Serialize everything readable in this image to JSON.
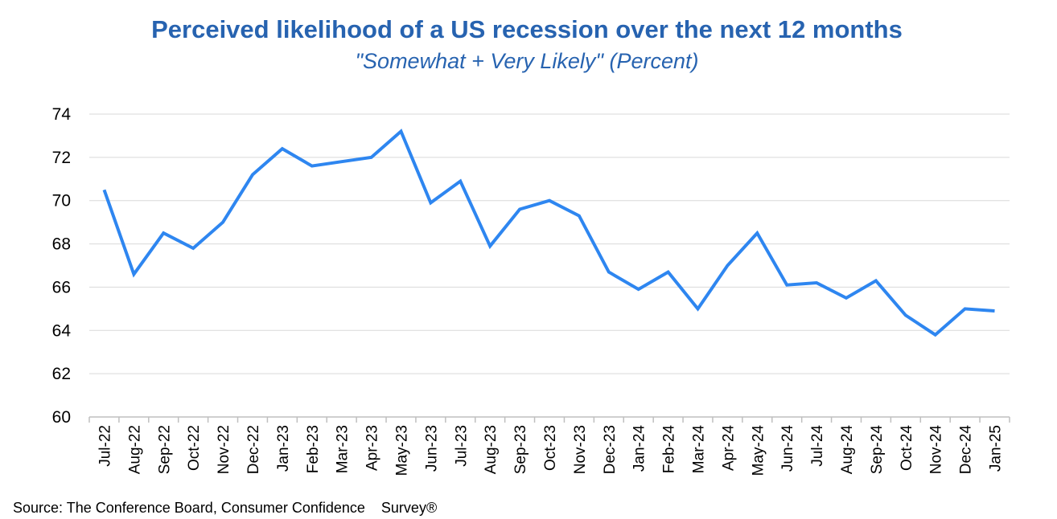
{
  "chart_data": {
    "type": "line",
    "title": "Perceived likelihood of a US recession over the next 12 months",
    "subtitle": "\"Somewhat + Very Likely\" (Percent)",
    "source": "Source: The Conference Board, Consumer Confidence    Survey®",
    "categories": [
      "Jul-22",
      "Aug-22",
      "Sep-22",
      "Oct-22",
      "Nov-22",
      "Dec-22",
      "Jan-23",
      "Feb-23",
      "Mar-23",
      "Apr-23",
      "May-23",
      "Jun-23",
      "Jul-23",
      "Aug-23",
      "Sep-23",
      "Oct-23",
      "Nov-23",
      "Dec-23",
      "Jan-24",
      "Feb-24",
      "Mar-24",
      "Apr-24",
      "May-24",
      "Jun-24",
      "Jul-24",
      "Aug-24",
      "Sep-24",
      "Oct-24",
      "Nov-24",
      "Dec-24",
      "Jan-25"
    ],
    "series": [
      {
        "values": [
          70.5,
          66.6,
          68.5,
          67.8,
          69.0,
          71.2,
          72.4,
          71.6,
          71.8,
          72.0,
          73.2,
          69.9,
          70.9,
          67.9,
          69.6,
          70.0,
          69.3,
          66.7,
          65.9,
          66.7,
          65.0,
          67.0,
          68.5,
          66.1,
          66.2,
          65.5,
          66.3,
          64.7,
          63.8,
          65.0,
          64.9
        ],
        "color": "#2e86f0"
      }
    ],
    "ylim": [
      60,
      74
    ],
    "yticks": [
      60,
      62,
      64,
      66,
      68,
      70,
      72,
      74
    ],
    "xlabel": "",
    "ylabel": "",
    "grid": true,
    "legend": "none",
    "title_color": "#2763b0",
    "grid_color": "#d9d9d9",
    "axis_color": "#bfbfbf"
  }
}
